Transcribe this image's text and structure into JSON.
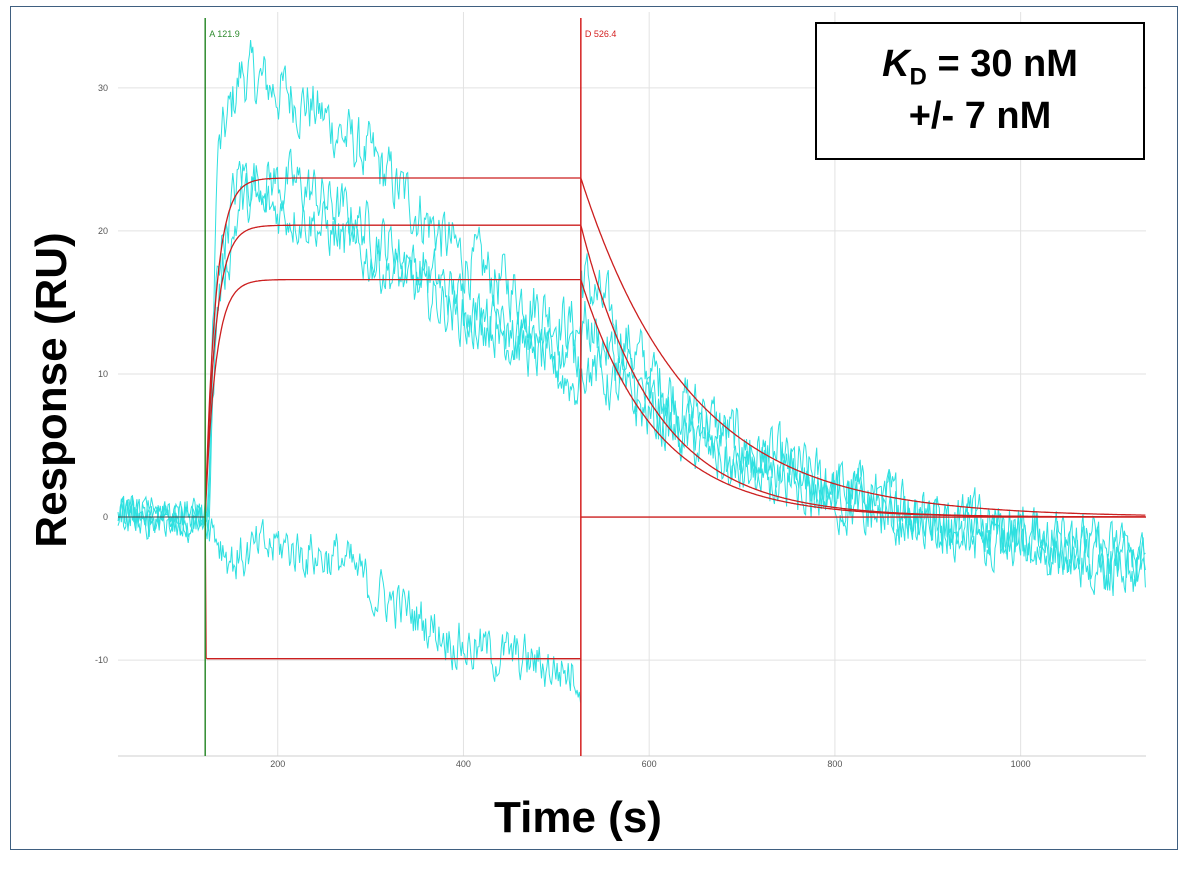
{
  "annotation": {
    "symbol": "K",
    "subscript": "D",
    "line1_rest": " = 30 nM",
    "line2": "+/- 7 nM"
  },
  "colors": {
    "data": "#2ee0e0",
    "fit": "#cc1f1f",
    "marker_association": "#2e8b2e",
    "marker_dissociation": "#d42020",
    "grid": "#e2e2e2",
    "frame": "#3f5f80"
  },
  "chart_data": {
    "type": "line",
    "xlabel": "Time (s)",
    "ylabel": "Response (RU)",
    "xlim": [
      28,
      1135
    ],
    "ylim": [
      -16.7,
      35.3
    ],
    "x_ticks": [
      200,
      400,
      600,
      800,
      1000
    ],
    "y_ticks": [
      -10,
      0,
      10,
      20,
      30
    ],
    "grid": true,
    "markers": [
      {
        "label": "A 121.9",
        "x": 121.9,
        "kind": "association"
      },
      {
        "label": "D 526.4",
        "x": 526.4,
        "kind": "dissociation"
      }
    ],
    "association_start": 121.9,
    "dissociation_start": 526.4,
    "end_time": 1135,
    "fit_curves": [
      {
        "plateau": 23.7,
        "ka": 0.09,
        "kd": 0.0085
      },
      {
        "plateau": 20.4,
        "ka": 0.09,
        "kd": 0.0125
      },
      {
        "plateau": 16.6,
        "ka": 0.09,
        "kd": 0.0125
      },
      {
        "plateau": -9.9,
        "ka": 5.0,
        "kd": 20.0
      }
    ],
    "sensorgram_traces": [
      {
        "pre_level": 0,
        "assoc": [
          [
            125,
            0
          ],
          [
            135,
            25
          ],
          [
            160,
            31
          ],
          [
            230,
            29
          ],
          [
            300,
            25
          ],
          [
            400,
            18
          ],
          [
            526,
            13
          ]
        ],
        "dissoc": [
          [
            526,
            17
          ],
          [
            600,
            10
          ],
          [
            700,
            5
          ],
          [
            800,
            2
          ],
          [
            900,
            0
          ],
          [
            1000,
            -1
          ],
          [
            1135,
            -4
          ]
        ],
        "noise": 2.2
      },
      {
        "pre_level": 0,
        "assoc": [
          [
            125,
            0
          ],
          [
            135,
            18
          ],
          [
            160,
            24
          ],
          [
            230,
            23
          ],
          [
            300,
            20
          ],
          [
            400,
            15
          ],
          [
            526,
            9
          ]
        ],
        "dissoc": [
          [
            526,
            14
          ],
          [
            600,
            8
          ],
          [
            700,
            4
          ],
          [
            800,
            2
          ],
          [
            900,
            0
          ],
          [
            1000,
            -1
          ],
          [
            1135,
            -3
          ]
        ],
        "noise": 2.0
      },
      {
        "pre_level": 0,
        "assoc": [
          [
            125,
            0
          ],
          [
            135,
            15
          ],
          [
            160,
            22
          ],
          [
            230,
            21
          ],
          [
            300,
            18
          ],
          [
            400,
            14
          ],
          [
            526,
            11
          ]
        ],
        "dissoc": [
          [
            526,
            11
          ],
          [
            600,
            7
          ],
          [
            700,
            3
          ],
          [
            800,
            1
          ],
          [
            900,
            -1
          ],
          [
            1000,
            -2
          ],
          [
            1135,
            -4
          ]
        ],
        "noise": 1.9
      },
      {
        "pre_level": 0,
        "assoc": [
          [
            125,
            0
          ],
          [
            150,
            -3
          ],
          [
            200,
            -2
          ],
          [
            270,
            -3
          ],
          [
            300,
            -5
          ],
          [
            400,
            -9
          ],
          [
            526,
            -11
          ]
        ],
        "dissoc": [],
        "noise": 1.8
      }
    ]
  }
}
